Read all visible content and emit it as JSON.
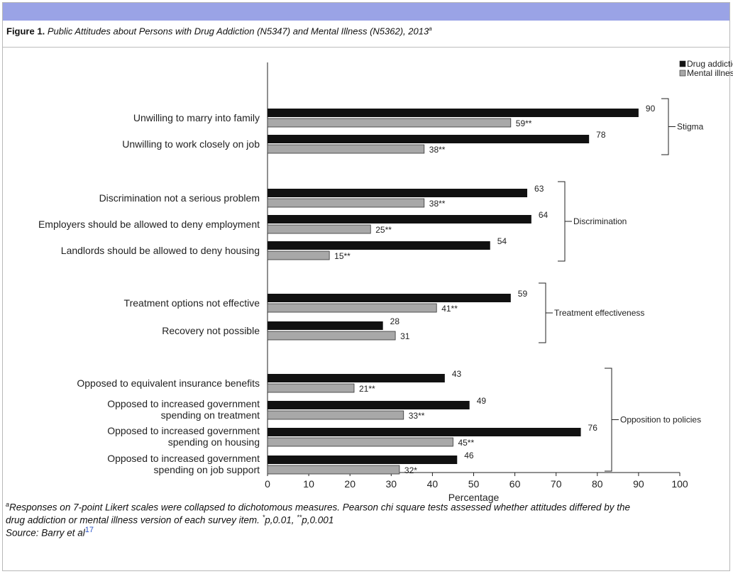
{
  "figure": {
    "label": "Figure 1.",
    "title": "Public Attitudes about Persons with Drug Addiction (N5347) and Mental Illness (N5362), 2013",
    "title_sup": "a"
  },
  "footnote": {
    "sup": "a",
    "text1": "Responses on 7-point Likert scales were collapsed to dichotomous measures. Pearson chi square tests assessed whether attitudes differed by the",
    "text2": "drug addiction or mental illness version of each survey item.",
    "sig1_sup": "*",
    "sig1": "p,0.01,",
    "sig2_sup": "**",
    "sig2": "p,0.001",
    "source": "Source: Barry et al",
    "source_ref": "17"
  },
  "colors": {
    "accent_bar": "#9aa3e6",
    "drug": "#111111",
    "mental": "#a8a8a8"
  },
  "chart_data": {
    "type": "bar",
    "orientation": "horizontal",
    "xlabel": "Percentage",
    "xlim": [
      0,
      100
    ],
    "xticks": [
      0,
      10,
      20,
      30,
      40,
      50,
      60,
      70,
      80,
      90,
      100
    ],
    "legend": [
      "Drug addiction",
      "Mental illness"
    ],
    "legend_position": "top-right",
    "groups": [
      {
        "name": "Stigma",
        "items": [
          {
            "label": [
              "Unwilling to marry into family"
            ],
            "drug": 90,
            "drug_label": "90",
            "mental": 59,
            "mental_label": "59**"
          },
          {
            "label": [
              "Unwilling to work closely on job"
            ],
            "drug": 78,
            "drug_label": "78",
            "mental": 38,
            "mental_label": "38**"
          }
        ]
      },
      {
        "name": "Discrimination",
        "items": [
          {
            "label": [
              "Discrimination not a serious problem"
            ],
            "drug": 63,
            "drug_label": "63",
            "mental": 38,
            "mental_label": "38**"
          },
          {
            "label": [
              "Employers should be allowed to deny employment"
            ],
            "drug": 64,
            "drug_label": "64",
            "mental": 25,
            "mental_label": "25**"
          },
          {
            "label": [
              "Landlords should be allowed to deny housing"
            ],
            "drug": 54,
            "drug_label": "54",
            "mental": 15,
            "mental_label": "15**"
          }
        ]
      },
      {
        "name": "Treatment effectiveness",
        "items": [
          {
            "label": [
              "Treatment options not effective"
            ],
            "drug": 59,
            "drug_label": "59",
            "mental": 41,
            "mental_label": "41**"
          },
          {
            "label": [
              "Recovery not possible"
            ],
            "drug": 28,
            "drug_label": "28",
            "mental": 31,
            "mental_label": "31"
          }
        ]
      },
      {
        "name": "Opposition to policies",
        "items": [
          {
            "label": [
              "Opposed to equivalent insurance benefits"
            ],
            "drug": 43,
            "drug_label": "43",
            "mental": 21,
            "mental_label": "21**"
          },
          {
            "label": [
              "Opposed to increased government",
              "spending on treatment"
            ],
            "drug": 49,
            "drug_label": "49",
            "mental": 33,
            "mental_label": "33**"
          },
          {
            "label": [
              "Opposed to increased government",
              "spending on housing"
            ],
            "drug": 76,
            "drug_label": "76",
            "mental": 45,
            "mental_label": "45**"
          },
          {
            "label": [
              "Opposed to increased government",
              "spending on job support"
            ],
            "drug": 46,
            "drug_label": "46",
            "mental": 32,
            "mental_label": "32*"
          }
        ]
      }
    ]
  }
}
